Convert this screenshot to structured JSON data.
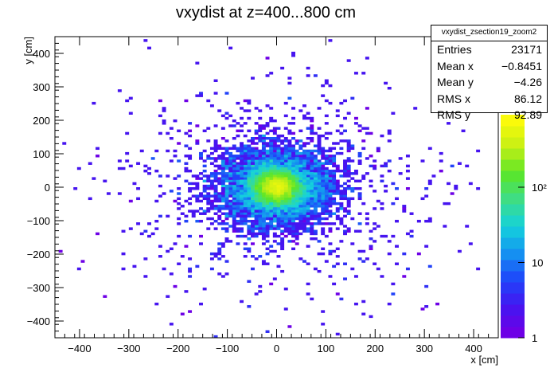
{
  "chart_data": {
    "type": "heatmap",
    "title": "vxydist at z=400...800 cm",
    "xlabel": "x [cm]",
    "ylabel": "y [cm]",
    "xlim": [
      -450,
      450
    ],
    "ylim": [
      -450,
      450
    ],
    "x_ticks": [
      -400,
      -300,
      -200,
      -100,
      0,
      100,
      200,
      300,
      400
    ],
    "y_ticks": [
      -400,
      -300,
      -200,
      -100,
      0,
      100,
      200,
      300,
      400
    ],
    "colorscale": "log",
    "color_ticks": [
      "1",
      "10",
      "10²"
    ],
    "zlim": [
      1,
      10000
    ],
    "peak": {
      "x": 0,
      "y": 0
    },
    "statistics": {
      "name": "vxydist_zsection19_zoom2",
      "entries": [
        {
          "label": "Entries",
          "value": "23171"
        },
        {
          "label": "Mean x",
          "value": "−0.8451"
        },
        {
          "label": "Mean y",
          "value": "−4.26"
        },
        {
          "label": "RMS x",
          "value": "86.12"
        },
        {
          "label": "RMS y",
          "value": "92.89"
        }
      ]
    }
  }
}
